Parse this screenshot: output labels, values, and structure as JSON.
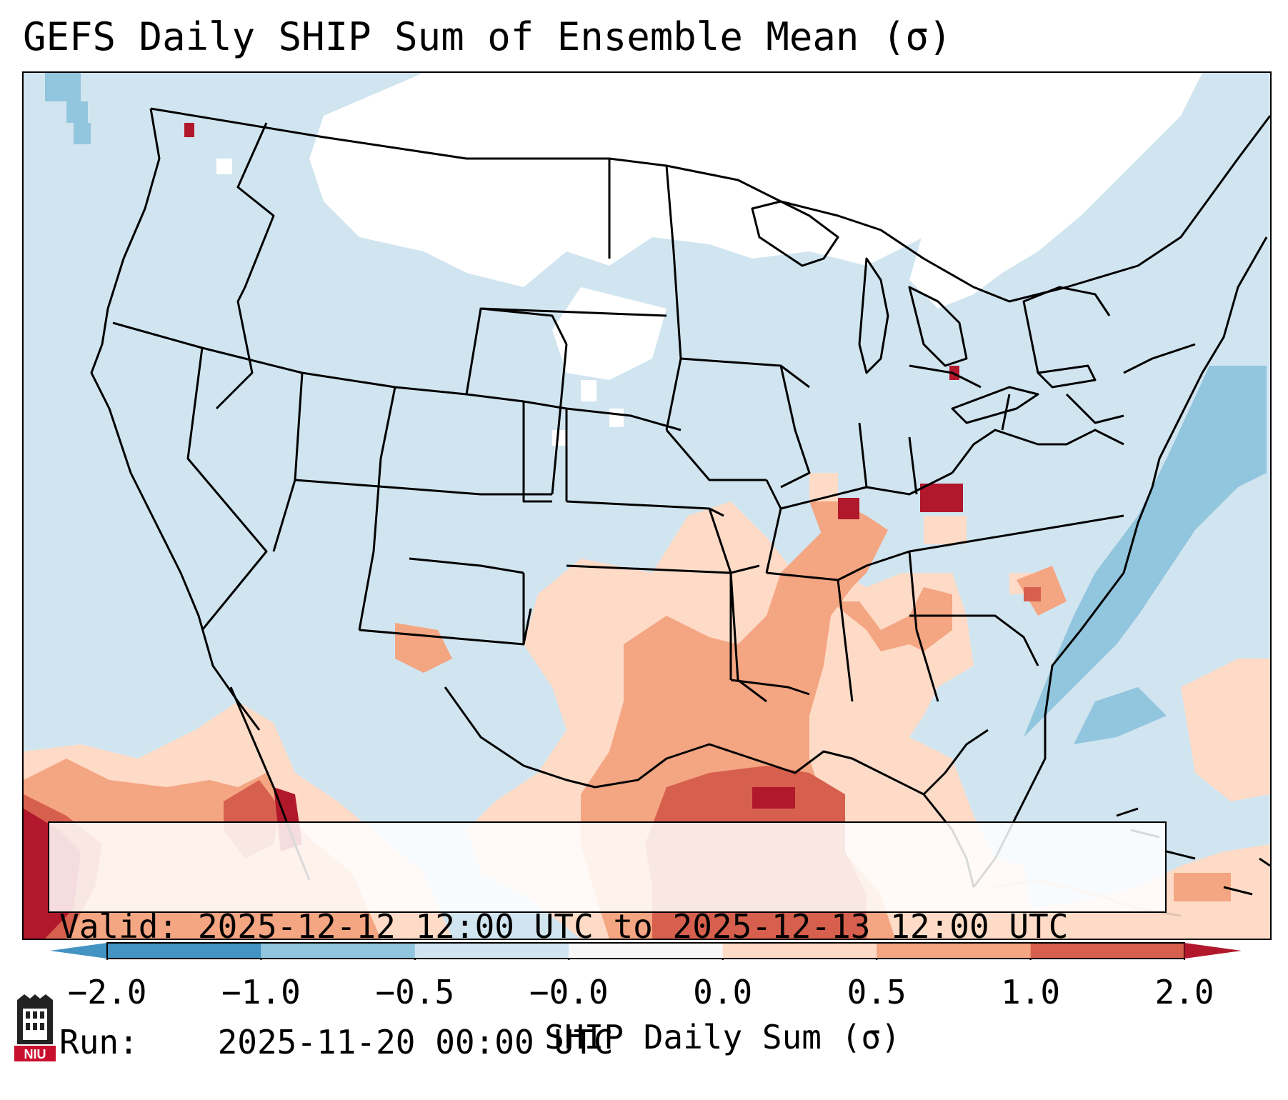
{
  "title": "GEFS Daily SHIP Sum of Ensemble Mean (σ)",
  "info": {
    "valid_label": "Valid:",
    "valid_value": "2025-12-12 12:00 UTC to 2025-12-13 12:00 UTC",
    "run_label": "Run:",
    "run_value": "2025-11-20 00:00 UTC"
  },
  "colorbar": {
    "label": "SHIP Daily Sum (σ)",
    "ticks": [
      "−2.0",
      "−1.0",
      "−0.5",
      "−0.0",
      "0.0",
      "0.5",
      "1.0",
      "2.0"
    ],
    "colors": [
      "#4393c3",
      "#92c5de",
      "#d1e5f0",
      "#f7f7f7",
      "#fddbc7",
      "#f4a582",
      "#d6604d",
      "#b2182b"
    ],
    "under_color": "#2166ac",
    "over_color": "#67001f"
  },
  "logo": {
    "text": "NIU",
    "color": "#c8102e"
  },
  "map": {
    "background_category": "-0.5 to 0.0",
    "legend_icon": "map-icon"
  }
}
